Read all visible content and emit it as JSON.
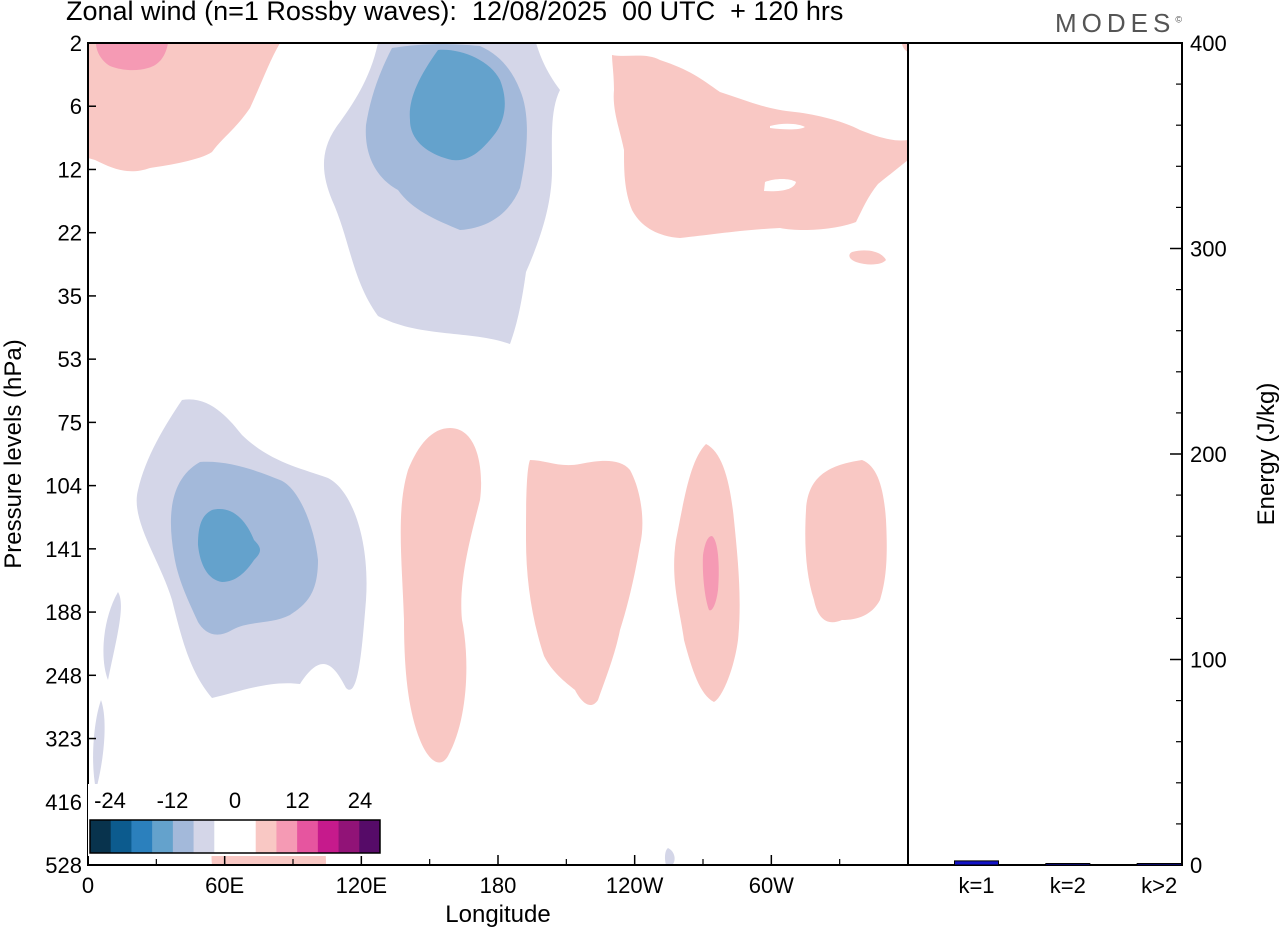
{
  "header": {
    "title": "Zonal wind (n=1 Rossby waves):  12/08/2025  00 UTC  + 120 hrs",
    "brand": "MODES",
    "brand_mark": "©"
  },
  "colors": {
    "neg_light": "#d4d6e8",
    "neg_mid": "#a3b9da",
    "neg_dark": "#64a2cc",
    "pos_light": "#f9c8c4",
    "pos_mid": "#f59ab4",
    "energy_bar": "#1212c8"
  },
  "chart_data": [
    {
      "type": "contour",
      "title": "Zonal wind (n=1 Rossby waves):  12/08/2025  00 UTC  + 120 hrs",
      "xlabel": "Longitude",
      "ylabel": "Pressure levels (hPa)",
      "x_ticks": [
        "0",
        "60E",
        "120E",
        "180",
        "120W",
        "60W"
      ],
      "y_ticks": [
        "2",
        "6",
        "12",
        "22",
        "35",
        "53",
        "75",
        "104",
        "141",
        "188",
        "248",
        "323",
        "416",
        "528"
      ],
      "colorbar": {
        "tick_labels": [
          "-24",
          "-12",
          "0",
          "12",
          "24"
        ],
        "colors": [
          "#08334d",
          "#0c5b8e",
          "#2b80bd",
          "#64a2cc",
          "#a3b9da",
          "#d4d6e8",
          "#ffffff",
          "#ffffff",
          "#f9c8c4",
          "#f59ab4",
          "#e6559f",
          "#c61a8c",
          "#911377",
          "#560b68"
        ]
      },
      "features": [
        {
          "sign": "negative",
          "level": -12,
          "lon_center": 55,
          "pressure_center": 141,
          "label": "easterly core near 60E"
        },
        {
          "sign": "negative",
          "level": -12,
          "lon_center": 165,
          "pressure_center": 6,
          "label": "easterly core near 165E"
        },
        {
          "sign": "positive",
          "level": 12,
          "lon_center": 280,
          "pressure_center": 160,
          "label": "westerly core near 80W"
        },
        {
          "sign": "positive",
          "level": 12,
          "lon_center": 15,
          "pressure_center": 2,
          "label": "westerly core near 15E"
        }
      ]
    },
    {
      "type": "bar",
      "ylabel": "Energy (J/kg)",
      "ylim": [
        0,
        400
      ],
      "y_ticks": [
        "0",
        "100",
        "200",
        "300",
        "400"
      ],
      "categories": [
        "k=1",
        "k=2",
        "k>2"
      ],
      "values": [
        2,
        0.4,
        0.6
      ]
    }
  ]
}
